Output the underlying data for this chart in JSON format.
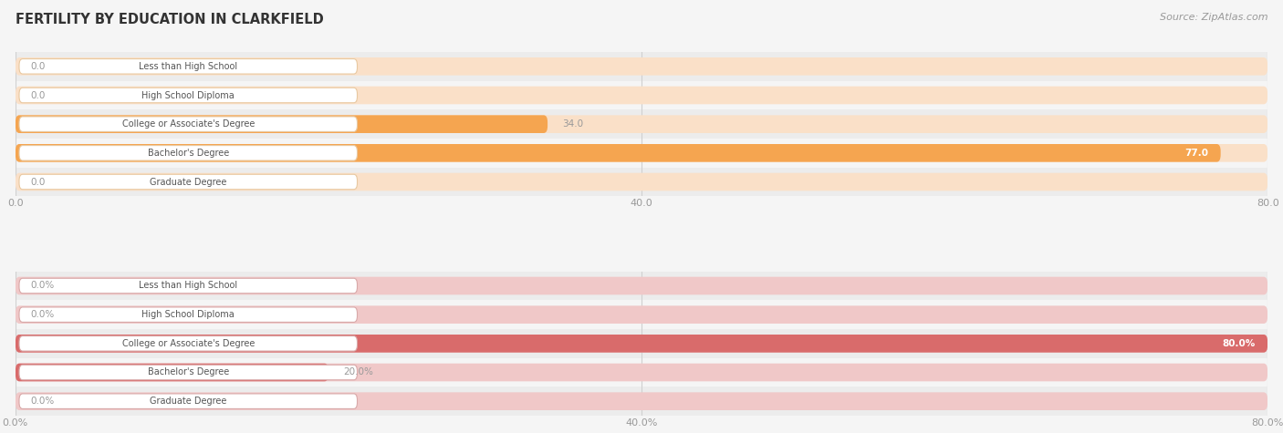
{
  "title": "FERTILITY BY EDUCATION IN CLARKFIELD",
  "source": "Source: ZipAtlas.com",
  "top_section": {
    "categories": [
      "Less than High School",
      "High School Diploma",
      "College or Associate's Degree",
      "Bachelor's Degree",
      "Graduate Degree"
    ],
    "values": [
      0.0,
      0.0,
      34.0,
      77.0,
      0.0
    ],
    "max_value": 80.0,
    "tick_values": [
      0.0,
      40.0,
      80.0
    ],
    "bar_color": "#F5A550",
    "bar_bg_color": "#FAE0C8",
    "label_box_color": "#FFFFFF",
    "label_border_color": "#E8C8A0",
    "value_inside_color": "#FFFFFF",
    "value_outside_color": "#999999"
  },
  "bottom_section": {
    "categories": [
      "Less than High School",
      "High School Diploma",
      "College or Associate's Degree",
      "Bachelor's Degree",
      "Graduate Degree"
    ],
    "values": [
      0.0,
      0.0,
      80.0,
      20.0,
      0.0
    ],
    "max_value": 80.0,
    "tick_values": [
      0.0,
      40.0,
      80.0
    ],
    "bar_color": "#D96B6B",
    "bar_bg_color": "#F0C8C8",
    "label_box_color": "#FFFFFF",
    "label_border_color": "#D8A8A8",
    "value_inside_color": "#FFFFFF",
    "value_outside_color": "#999999"
  },
  "fig_bg_color": "#F5F5F5",
  "row_bg_even": "#ECECEC",
  "row_bg_odd": "#F5F5F5",
  "grid_color": "#D0D0D0",
  "tick_label_color": "#999999",
  "cat_label_color": "#555555",
  "fig_width": 14.06,
  "fig_height": 4.75,
  "dpi": 100
}
